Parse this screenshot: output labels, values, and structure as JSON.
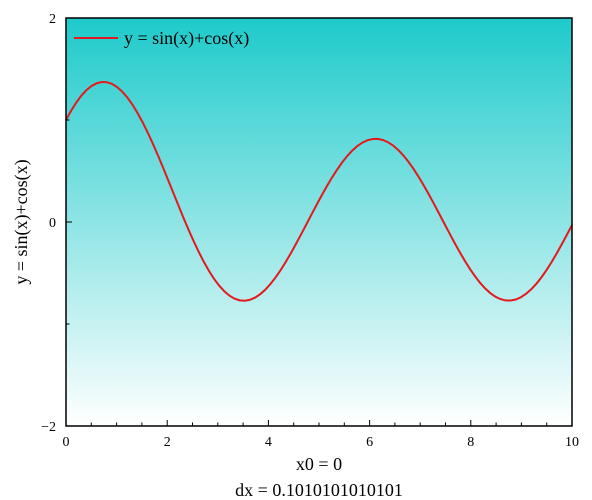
{
  "chart_data": {
    "type": "line",
    "xlabel_lines": [
      "x0 = 0",
      "dx = 0.1010101010101"
    ],
    "ylabel": "y = sin(x)+cos(x)",
    "xlim": [
      0,
      10
    ],
    "ylim": [
      -2,
      2
    ],
    "x_ticks": [
      "0",
      "2",
      "4",
      "6",
      "8",
      "10"
    ],
    "y_ticks": [
      "−2",
      "0",
      "2"
    ],
    "legend_placement": "top-left",
    "grid": false,
    "background_gradient": {
      "top": "#1ECACB",
      "bottom": "#FFFFFF"
    },
    "series": [
      {
        "name": "y = sin(x)+cos(x)",
        "color": "#E31A1C",
        "x0": 0,
        "dx": 0.1010101010101,
        "points": 100,
        "values": [
          1.0,
          1.0911,
          1.1708,
          1.2383,
          1.2928,
          1.3336,
          1.3604,
          1.3728,
          1.3707,
          1.3541,
          1.3233,
          1.2787,
          1.2209,
          1.1507,
          1.069,
          0.9769,
          0.8758,
          0.7669,
          0.6517,
          0.5319,
          0.4091,
          0.285,
          0.1613,
          0.0397,
          -0.0783,
          -0.1908,
          -0.2964,
          -0.3938,
          -0.4819,
          -0.5596,
          -0.6261,
          -0.6806,
          -0.7226,
          -0.7519,
          -0.7683,
          -0.7718,
          -0.7626,
          -0.741,
          -0.7076,
          -0.663,
          -0.6081,
          -0.5437,
          -0.4709,
          -0.391,
          -0.3051,
          -0.2147,
          -0.121,
          -0.0255,
          0.0705,
          0.1656,
          0.2585,
          0.3478,
          0.4323,
          0.5108,
          0.5822,
          0.6455,
          0.6998,
          0.7444,
          0.7786,
          0.8019,
          0.814,
          0.8147,
          0.8041,
          0.7822,
          0.7493,
          0.706,
          0.6528,
          0.5905,
          0.52,
          0.4422,
          0.3583,
          0.2695,
          0.1771,
          0.0824,
          -0.0132,
          -0.1085,
          -0.202,
          -0.2922,
          -0.3779,
          -0.4577,
          -0.5305,
          -0.5952,
          -0.6508,
          -0.6966,
          -0.7318,
          -0.756,
          -0.7688,
          -0.77,
          -0.7596,
          -0.7377,
          -0.7047,
          -0.6609,
          -0.6071,
          -0.5439,
          -0.4723,
          -0.3934,
          -0.3083,
          -0.2183,
          -0.1249,
          -0.029
        ]
      }
    ]
  }
}
